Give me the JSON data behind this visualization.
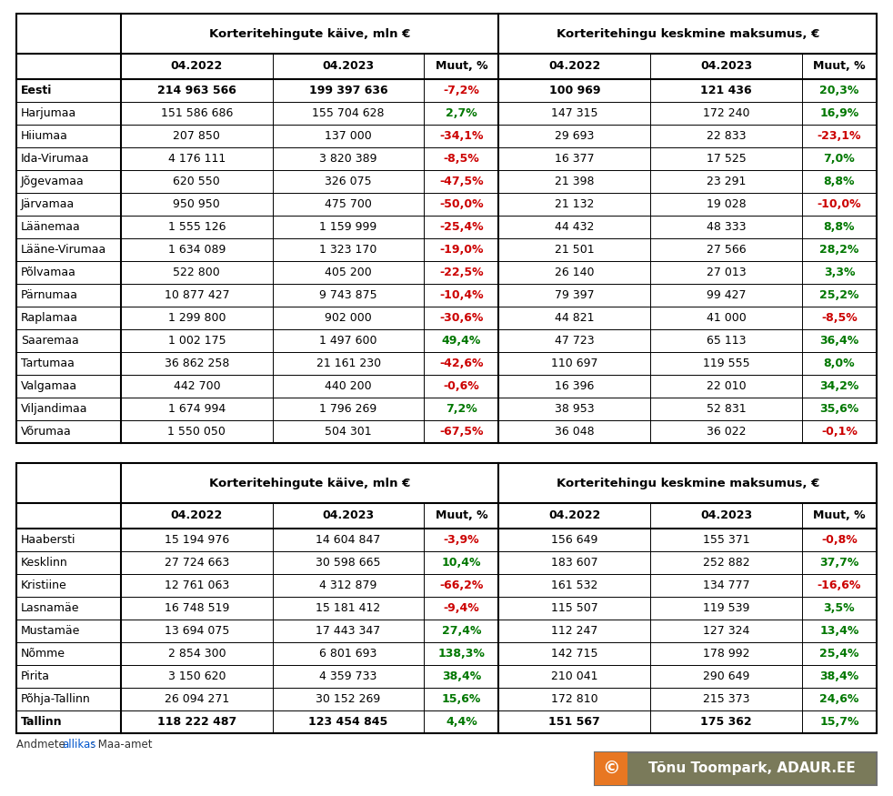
{
  "table1_header1": "Korteritehingute käive, mln €",
  "table1_header2": "Korteritehingu keskmine maksumus, €",
  "col_headers": [
    "04.2022",
    "04.2023",
    "Muut, %",
    "04.2022",
    "04.2023",
    "Muut, %"
  ],
  "table1_rows": [
    [
      "Eesti",
      "214 963 566",
      "199 397 636",
      "-7,2%",
      "100 969",
      "121 436",
      "20,3%",
      true
    ],
    [
      "Harjumaa",
      "151 586 686",
      "155 704 628",
      "2,7%",
      "147 315",
      "172 240",
      "16,9%",
      false
    ],
    [
      "Hiiumaa",
      "207 850",
      "137 000",
      "-34,1%",
      "29 693",
      "22 833",
      "-23,1%",
      false
    ],
    [
      "Ida-Virumaa",
      "4 176 111",
      "3 820 389",
      "-8,5%",
      "16 377",
      "17 525",
      "7,0%",
      false
    ],
    [
      "Jõgevamaa",
      "620 550",
      "326 075",
      "-47,5%",
      "21 398",
      "23 291",
      "8,8%",
      false
    ],
    [
      "Järvamaa",
      "950 950",
      "475 700",
      "-50,0%",
      "21 132",
      "19 028",
      "-10,0%",
      false
    ],
    [
      "Läänemaa",
      "1 555 126",
      "1 159 999",
      "-25,4%",
      "44 432",
      "48 333",
      "8,8%",
      false
    ],
    [
      "Lääne-Virumaa",
      "1 634 089",
      "1 323 170",
      "-19,0%",
      "21 501",
      "27 566",
      "28,2%",
      false
    ],
    [
      "Põlvamaa",
      "522 800",
      "405 200",
      "-22,5%",
      "26 140",
      "27 013",
      "3,3%",
      false
    ],
    [
      "Pärnumaa",
      "10 877 427",
      "9 743 875",
      "-10,4%",
      "79 397",
      "99 427",
      "25,2%",
      false
    ],
    [
      "Raplamaa",
      "1 299 800",
      "902 000",
      "-30,6%",
      "44 821",
      "41 000",
      "-8,5%",
      false
    ],
    [
      "Saaremaa",
      "1 002 175",
      "1 497 600",
      "49,4%",
      "47 723",
      "65 113",
      "36,4%",
      false
    ],
    [
      "Tartumaa",
      "36 862 258",
      "21 161 230",
      "-42,6%",
      "110 697",
      "119 555",
      "8,0%",
      false
    ],
    [
      "Valgamaa",
      "442 700",
      "440 200",
      "-0,6%",
      "16 396",
      "22 010",
      "34,2%",
      false
    ],
    [
      "Viljandimaa",
      "1 674 994",
      "1 796 269",
      "7,2%",
      "38 953",
      "52 831",
      "35,6%",
      false
    ],
    [
      "Võrumaa",
      "1 550 050",
      "504 301",
      "-67,5%",
      "36 048",
      "36 022",
      "-0,1%",
      false
    ]
  ],
  "table2_rows": [
    [
      "Haabersti",
      "15 194 976",
      "14 604 847",
      "-3,9%",
      "156 649",
      "155 371",
      "-0,8%",
      false
    ],
    [
      "Kesklinn",
      "27 724 663",
      "30 598 665",
      "10,4%",
      "183 607",
      "252 882",
      "37,7%",
      false
    ],
    [
      "Kristiine",
      "12 761 063",
      "4 312 879",
      "-66,2%",
      "161 532",
      "134 777",
      "-16,6%",
      false
    ],
    [
      "Lasnamäe",
      "16 748 519",
      "15 181 412",
      "-9,4%",
      "115 507",
      "119 539",
      "3,5%",
      false
    ],
    [
      "Mustamäe",
      "13 694 075",
      "17 443 347",
      "27,4%",
      "112 247",
      "127 324",
      "13,4%",
      false
    ],
    [
      "Nõmme",
      "2 854 300",
      "6 801 693",
      "138,3%",
      "142 715",
      "178 992",
      "25,4%",
      false
    ],
    [
      "Pirita",
      "3 150 620",
      "4 359 733",
      "38,4%",
      "210 041",
      "290 649",
      "38,4%",
      false
    ],
    [
      "Põhja-Tallinn",
      "26 094 271",
      "30 152 269",
      "15,6%",
      "172 810",
      "215 373",
      "24,6%",
      false
    ],
    [
      "Tallinn",
      "118 222 487",
      "123 454 845",
      "4,4%",
      "151 567",
      "175 362",
      "15,7%",
      true
    ]
  ],
  "watermark_text": "© Tõnu Toompark, ADAUR.EE",
  "watermark_bg": "#E87722",
  "watermark_text_color": "#FFFFFF",
  "watermark_gray_bg": "#808060",
  "watermark_border": "#707070",
  "bg_color": "#FFFFFF",
  "border_color": "#000000",
  "color_positive": "#007700",
  "color_negative": "#CC0000",
  "color_neutral": "#000000",
  "header_text_color": "#000000",
  "row_name_color": "#000000",
  "value_color": "#000000",
  "footer_color": "#333333",
  "allikas_color": "#0055CC"
}
